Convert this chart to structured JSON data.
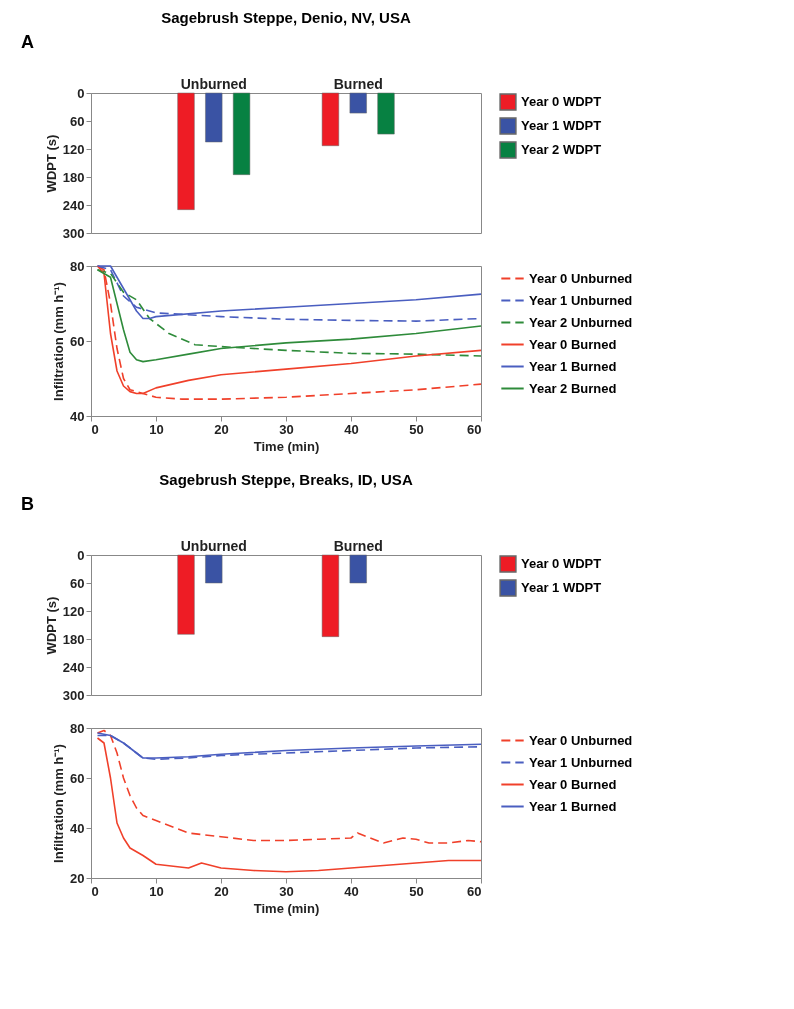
{
  "chart_data": [
    {
      "type": "bar",
      "title": "Sagebrush Steppe, Denio, NV, USA",
      "annotations": [
        "A"
      ],
      "ylabel": "WDPT (s)",
      "categories": [
        "Unburned",
        "Burned"
      ],
      "ylim": [
        300,
        0
      ],
      "yticks": [
        0,
        60,
        120,
        180,
        240,
        300
      ],
      "grid": false,
      "legend": "right",
      "series": [
        {
          "name": "Year 0 WDPT",
          "color": "#ee1c25",
          "values": [
            250,
            113
          ]
        },
        {
          "name": "Year 1 WDPT",
          "color": "#3a53a4",
          "values": [
            105,
            43
          ]
        },
        {
          "name": "Year 2 WDPT",
          "color": "#078142",
          "values": [
            175,
            88
          ]
        }
      ]
    },
    {
      "type": "line",
      "xlabel": "Time (min)",
      "ylabel": "Infiltration (mm h⁻¹)",
      "xlim": [
        0,
        60
      ],
      "xticks": [
        0,
        10,
        20,
        30,
        40,
        50,
        60
      ],
      "ylim": [
        40,
        80
      ],
      "yticks": [
        40,
        60,
        80
      ],
      "grid": false,
      "legend": "right",
      "series": [
        {
          "name": "Year 0 Unburned",
          "color": "#f0402a",
          "line_style": "dashed",
          "x": [
            1,
            2,
            3,
            4,
            5,
            6,
            8,
            10,
            14,
            20,
            30,
            40,
            50,
            60
          ],
          "values": [
            80,
            79,
            70,
            58,
            50,
            47,
            46,
            45,
            44.5,
            44.5,
            45,
            46,
            47,
            48.5
          ]
        },
        {
          "name": "Year 1 Unburned",
          "color": "#4a5ec0",
          "line_style": "dashed",
          "x": [
            1,
            3,
            5,
            7,
            10,
            20,
            30,
            40,
            50,
            60
          ],
          "values": [
            80,
            79,
            72,
            69,
            67.5,
            66.5,
            65.8,
            65.5,
            65.3,
            66
          ]
        },
        {
          "name": "Year 2 Unburned",
          "color": "#2e8b3a",
          "line_style": "dashed",
          "x": [
            1,
            3,
            5,
            7,
            9,
            12,
            16,
            20,
            30,
            40,
            50,
            60
          ],
          "values": [
            79,
            78,
            73,
            71,
            66,
            62,
            59,
            58.5,
            57.5,
            56.7,
            56.5,
            56
          ]
        },
        {
          "name": "Year 0 Burned",
          "color": "#f0402a",
          "line_style": "solid",
          "x": [
            1,
            2,
            3,
            4,
            5,
            6,
            7,
            8,
            10,
            15,
            20,
            30,
            40,
            50,
            60
          ],
          "values": [
            80,
            78,
            62,
            52,
            48,
            46.5,
            46,
            46,
            47.5,
            49.5,
            51,
            52.5,
            54,
            56,
            57.5
          ]
        },
        {
          "name": "Year 1 Burned",
          "color": "#4a5ec0",
          "line_style": "solid",
          "x": [
            1,
            3,
            5,
            7,
            8,
            9,
            10,
            20,
            30,
            40,
            50,
            60
          ],
          "values": [
            80,
            80,
            74,
            68,
            66,
            66,
            66.5,
            68,
            69,
            70,
            71,
            72.5
          ]
        },
        {
          "name": "Year 2 Burned",
          "color": "#2e8b3a",
          "line_style": "solid",
          "x": [
            1,
            3,
            4,
            5,
            6,
            7,
            8,
            10,
            15,
            20,
            30,
            40,
            50,
            60
          ],
          "values": [
            79,
            77,
            70,
            63,
            57,
            55,
            54.5,
            55,
            56.5,
            58,
            59.5,
            60.5,
            62,
            64
          ]
        }
      ]
    },
    {
      "type": "bar",
      "title": "Sagebrush Steppe, Breaks, ID, USA",
      "annotations": [
        "B"
      ],
      "ylabel": "WDPT (s)",
      "categories": [
        "Unburned",
        "Burned"
      ],
      "ylim": [
        300,
        0
      ],
      "yticks": [
        0,
        60,
        120,
        180,
        240,
        300
      ],
      "grid": false,
      "legend": "right",
      "series": [
        {
          "name": "Year 0 WDPT",
          "color": "#ee1c25",
          "values": [
            170,
            175
          ]
        },
        {
          "name": "Year 1 WDPT",
          "color": "#3a53a4",
          "values": [
            60,
            60
          ]
        }
      ]
    },
    {
      "type": "line",
      "xlabel": "Time (min)",
      "ylabel": "Infiltration (mm h⁻¹)",
      "xlim": [
        0,
        60
      ],
      "xticks": [
        0,
        10,
        20,
        30,
        40,
        50,
        60
      ],
      "ylim": [
        20,
        80
      ],
      "yticks": [
        20,
        40,
        60,
        80
      ],
      "grid": false,
      "legend": "right",
      "series": [
        {
          "name": "Year 0 Unburned",
          "color": "#f0402a",
          "line_style": "dashed",
          "x": [
            1,
            2,
            3,
            4,
            5,
            6,
            7,
            8,
            10,
            15,
            20,
            25,
            30,
            35,
            40,
            41,
            45,
            48,
            50,
            52,
            55,
            58,
            60
          ],
          "values": [
            78,
            79,
            77,
            70,
            60,
            53,
            48,
            45,
            43,
            38,
            36.5,
            35,
            35,
            35.5,
            36,
            38,
            34,
            36,
            35.5,
            34,
            34,
            35,
            34.5
          ]
        },
        {
          "name": "Year 1 Unburned",
          "color": "#4a5ec0",
          "line_style": "dashed",
          "x": [
            1,
            3,
            5,
            7,
            8,
            10,
            15,
            20,
            30,
            40,
            50,
            60
          ],
          "values": [
            77,
            77,
            74,
            70,
            68,
            67.5,
            68,
            69,
            70,
            71,
            72,
            72.5
          ]
        },
        {
          "name": "Year 0 Burned",
          "color": "#f0402a",
          "line_style": "solid",
          "x": [
            1,
            2,
            3,
            4,
            5,
            6,
            8,
            10,
            15,
            17,
            20,
            25,
            30,
            35,
            40,
            45,
            50,
            55,
            60
          ],
          "values": [
            76,
            74,
            60,
            42,
            36,
            32,
            29,
            25.5,
            24,
            26,
            24,
            23,
            22.5,
            23,
            24,
            25,
            26,
            27,
            27
          ]
        },
        {
          "name": "Year 1 Burned",
          "color": "#4a5ec0",
          "line_style": "solid",
          "x": [
            1,
            3,
            5,
            7,
            8,
            10,
            15,
            20,
            30,
            40,
            50,
            60
          ],
          "values": [
            78,
            77,
            74,
            70,
            68,
            68,
            68.5,
            69.5,
            71,
            72,
            72.8,
            73.5
          ]
        }
      ]
    }
  ]
}
